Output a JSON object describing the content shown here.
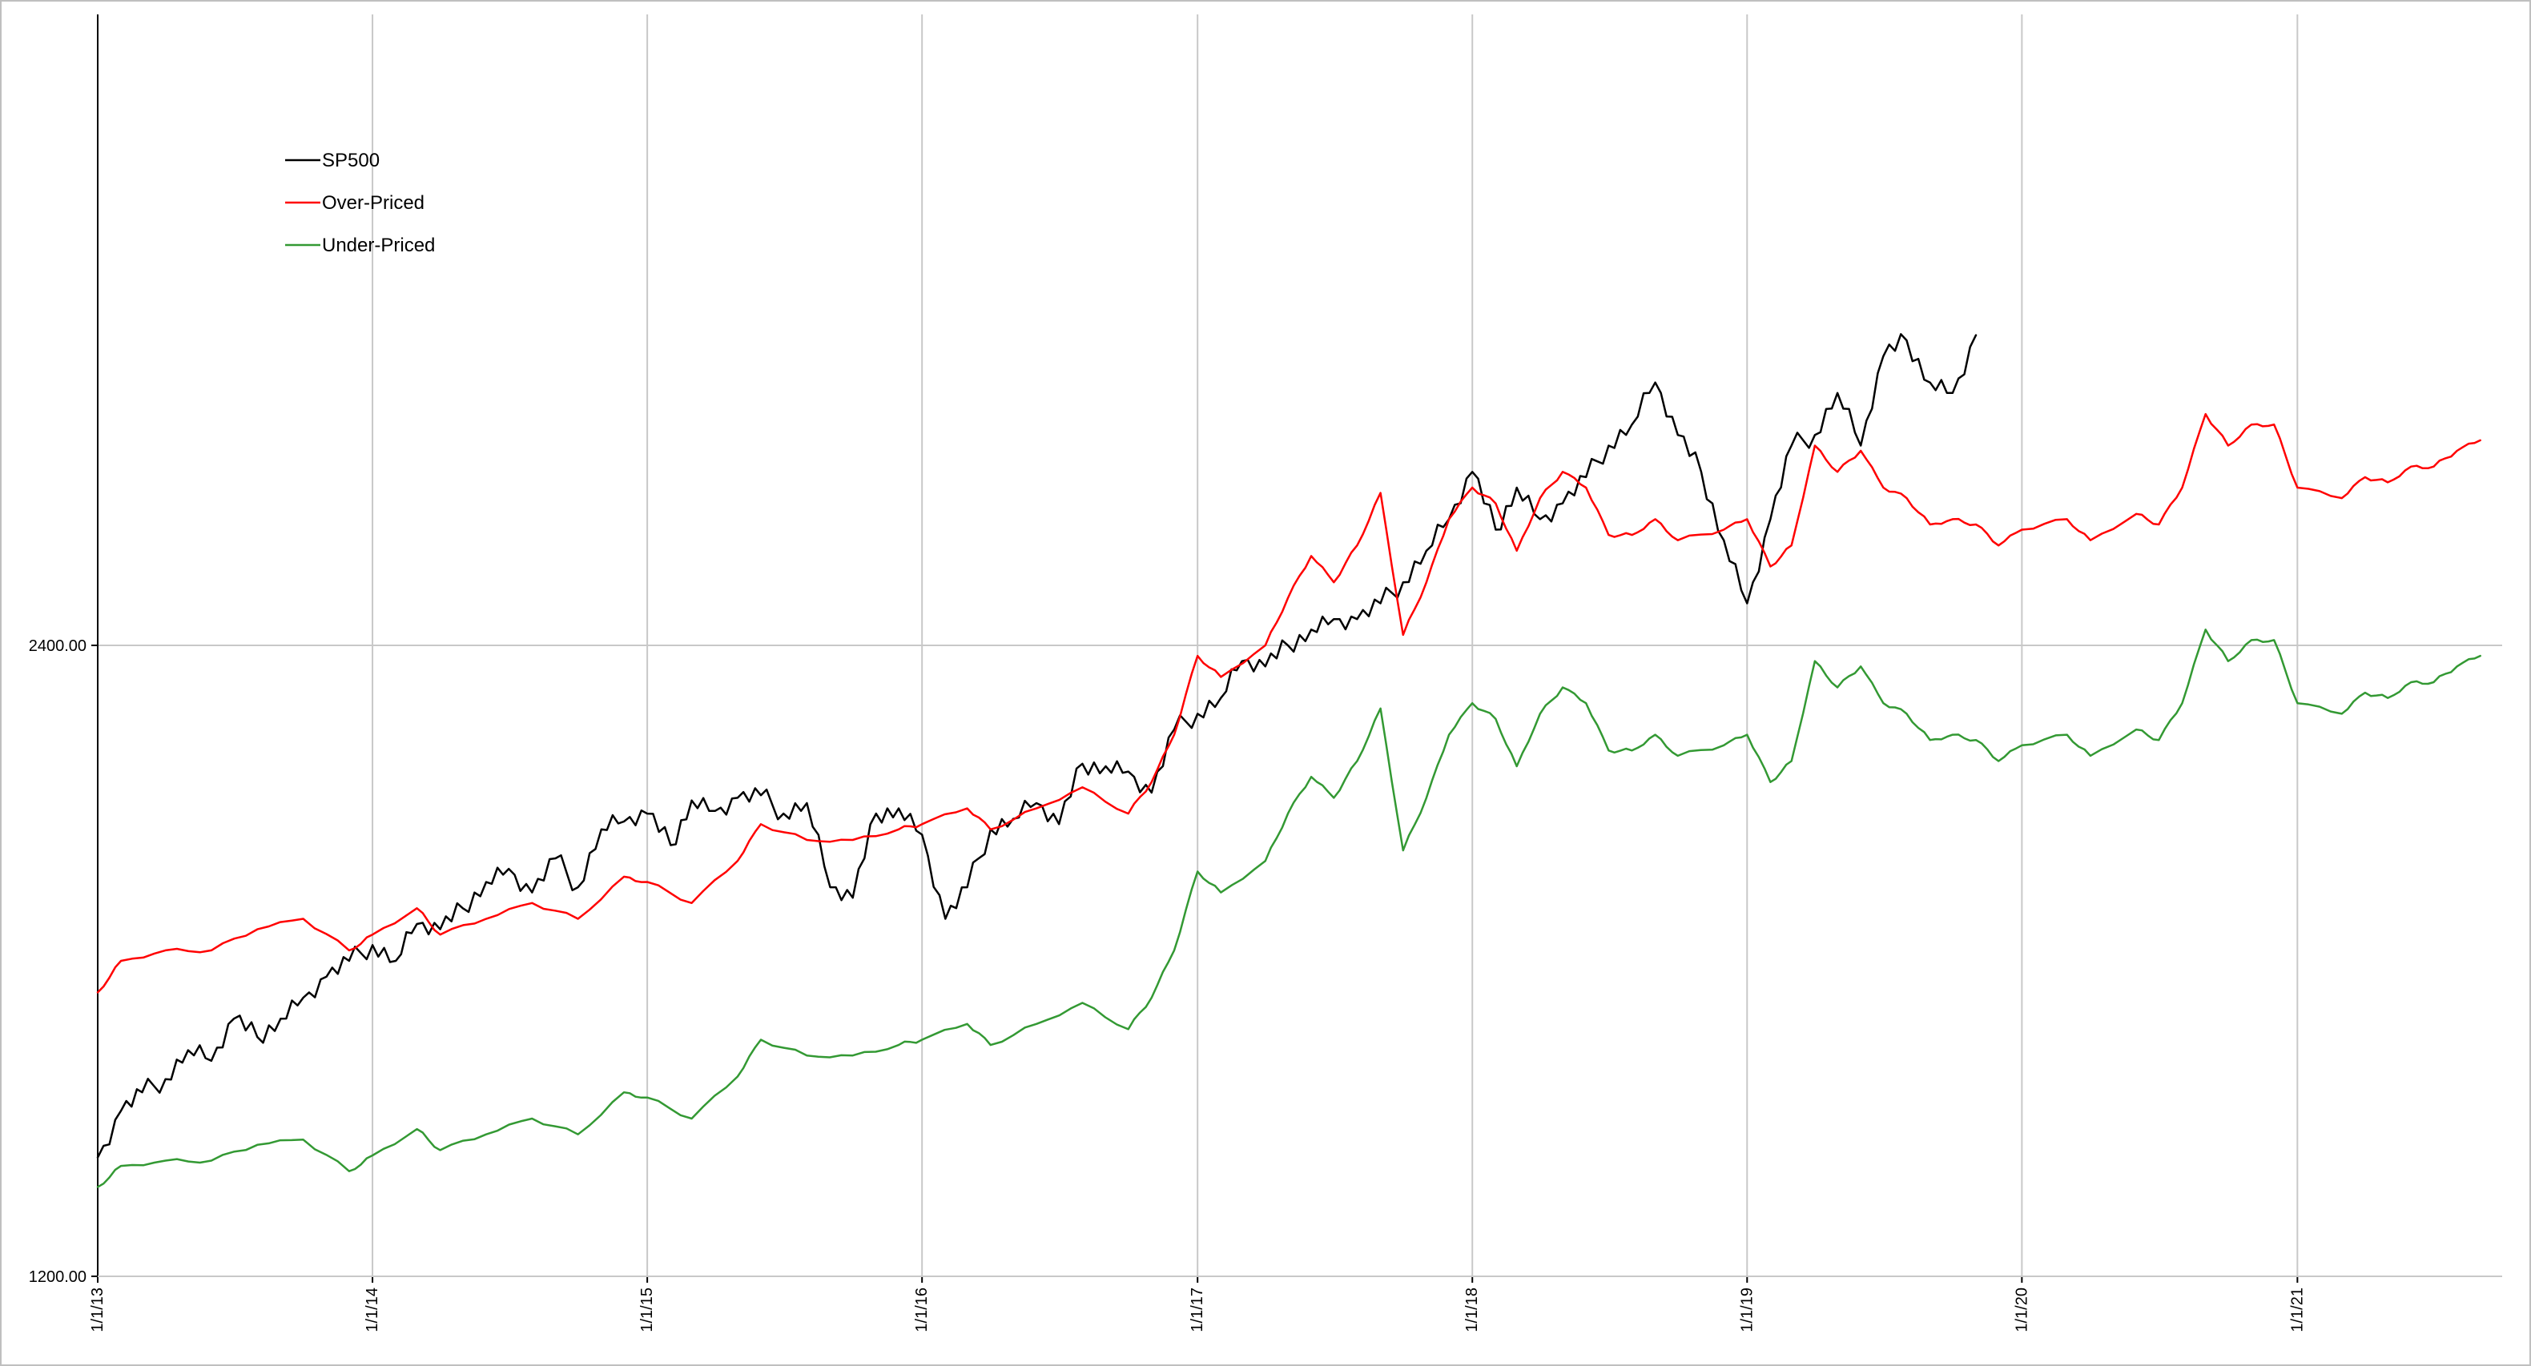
{
  "chart_data": {
    "type": "line",
    "title": "",
    "xlabel": "",
    "ylabel": "",
    "x_ticks": [
      "1/1/13",
      "1/1/14",
      "1/1/15",
      "1/1/16",
      "1/1/17",
      "1/1/18",
      "1/1/19",
      "1/1/20",
      "1/1/21"
    ],
    "y_ticks": [
      "1200.00",
      "2400.00"
    ],
    "xlim": [
      "2013-01-01",
      "2021-09-30"
    ],
    "ylim": [
      1200,
      3600
    ],
    "grid": true,
    "legend_position": "top-left",
    "series": [
      {
        "name": "SP500",
        "color": "#000000",
        "points": [
          [
            "2013-01-01",
            1426
          ],
          [
            "2013-02-01",
            1515
          ],
          [
            "2013-03-01",
            1550
          ],
          [
            "2013-04-01",
            1575
          ],
          [
            "2013-05-01",
            1630
          ],
          [
            "2013-06-01",
            1610
          ],
          [
            "2013-07-01",
            1690
          ],
          [
            "2013-08-01",
            1655
          ],
          [
            "2013-09-01",
            1690
          ],
          [
            "2013-10-01",
            1730
          ],
          [
            "2013-11-01",
            1770
          ],
          [
            "2013-12-01",
            1800
          ],
          [
            "2014-01-01",
            1830
          ],
          [
            "2014-02-01",
            1800
          ],
          [
            "2014-03-01",
            1870
          ],
          [
            "2014-04-01",
            1860
          ],
          [
            "2014-05-01",
            1900
          ],
          [
            "2014-06-01",
            1950
          ],
          [
            "2014-07-01",
            1975
          ],
          [
            "2014-08-01",
            1930
          ],
          [
            "2014-09-01",
            1995
          ],
          [
            "2014-10-01",
            1940
          ],
          [
            "2014-11-01",
            2050
          ],
          [
            "2014-12-01",
            2065
          ],
          [
            "2015-01-01",
            2080
          ],
          [
            "2015-02-01",
            2020
          ],
          [
            "2015-03-01",
            2105
          ],
          [
            "2015-04-01",
            2085
          ],
          [
            "2015-05-01",
            2110
          ],
          [
            "2015-06-01",
            2115
          ],
          [
            "2015-07-01",
            2080
          ],
          [
            "2015-08-01",
            2100
          ],
          [
            "2015-09-01",
            1940
          ],
          [
            "2015-10-01",
            1920
          ],
          [
            "2015-11-01",
            2080
          ],
          [
            "2015-12-01",
            2090
          ],
          [
            "2016-01-01",
            2040
          ],
          [
            "2016-02-01",
            1880
          ],
          [
            "2016-03-01",
            1940
          ],
          [
            "2016-04-01",
            2050
          ],
          [
            "2016-05-01",
            2070
          ],
          [
            "2016-06-01",
            2100
          ],
          [
            "2016-07-01",
            2060
          ],
          [
            "2016-08-01",
            2175
          ],
          [
            "2016-09-01",
            2170
          ],
          [
            "2016-10-01",
            2160
          ],
          [
            "2016-11-01",
            2120
          ],
          [
            "2016-12-01",
            2240
          ],
          [
            "2017-01-01",
            2270
          ],
          [
            "2017-02-01",
            2300
          ],
          [
            "2017-03-01",
            2370
          ],
          [
            "2017-04-01",
            2360
          ],
          [
            "2017-05-01",
            2400
          ],
          [
            "2017-06-01",
            2430
          ],
          [
            "2017-07-01",
            2450
          ],
          [
            "2017-08-01",
            2450
          ],
          [
            "2017-09-01",
            2480
          ],
          [
            "2017-10-01",
            2520
          ],
          [
            "2017-11-01",
            2580
          ],
          [
            "2017-12-01",
            2640
          ],
          [
            "2018-01-01",
            2730
          ],
          [
            "2018-02-01",
            2620
          ],
          [
            "2018-03-01",
            2700
          ],
          [
            "2018-04-01",
            2640
          ],
          [
            "2018-05-01",
            2670
          ],
          [
            "2018-06-01",
            2720
          ],
          [
            "2018-07-01",
            2780
          ],
          [
            "2018-08-01",
            2820
          ],
          [
            "2018-09-01",
            2900
          ],
          [
            "2018-10-01",
            2800
          ],
          [
            "2018-11-01",
            2730
          ],
          [
            "2018-12-01",
            2600
          ],
          [
            "2019-01-01",
            2480
          ],
          [
            "2019-02-01",
            2640
          ],
          [
            "2019-03-01",
            2780
          ],
          [
            "2019-04-01",
            2800
          ],
          [
            "2019-05-01",
            2880
          ],
          [
            "2019-06-01",
            2780
          ],
          [
            "2019-07-01",
            2950
          ],
          [
            "2019-08-01",
            2980
          ],
          [
            "2019-09-01",
            2900
          ],
          [
            "2019-10-01",
            2880
          ],
          [
            "2019-11-01",
            2990
          ]
        ]
      },
      {
        "name": "Over-Priced",
        "color": "#ff0000",
        "points": [
          [
            "2013-01-01",
            1740
          ],
          [
            "2013-02-01",
            1800
          ],
          [
            "2013-04-01",
            1820
          ],
          [
            "2013-06-01",
            1820
          ],
          [
            "2013-08-01",
            1860
          ],
          [
            "2013-10-01",
            1880
          ],
          [
            "2013-12-01",
            1820
          ],
          [
            "2014-01-01",
            1850
          ],
          [
            "2014-03-01",
            1900
          ],
          [
            "2014-04-01",
            1850
          ],
          [
            "2014-06-01",
            1880
          ],
          [
            "2014-08-01",
            1910
          ],
          [
            "2014-10-01",
            1880
          ],
          [
            "2014-12-01",
            1960
          ],
          [
            "2015-01-01",
            1950
          ],
          [
            "2015-03-01",
            1910
          ],
          [
            "2015-05-01",
            1990
          ],
          [
            "2015-06-01",
            2060
          ],
          [
            "2015-08-01",
            2030
          ],
          [
            "2015-10-01",
            2030
          ],
          [
            "2015-12-01",
            2050
          ],
          [
            "2016-01-01",
            2060
          ],
          [
            "2016-03-01",
            2090
          ],
          [
            "2016-04-01",
            2050
          ],
          [
            "2016-06-01",
            2090
          ],
          [
            "2016-08-01",
            2130
          ],
          [
            "2016-10-01",
            2080
          ],
          [
            "2016-11-01",
            2140
          ],
          [
            "2016-12-01",
            2230
          ],
          [
            "2017-01-01",
            2380
          ],
          [
            "2017-02-01",
            2340
          ],
          [
            "2017-04-01",
            2400
          ],
          [
            "2017-05-01",
            2490
          ],
          [
            "2017-06-01",
            2570
          ],
          [
            "2017-07-01",
            2520
          ],
          [
            "2017-08-01",
            2590
          ],
          [
            "2017-09-01",
            2690
          ],
          [
            "2017-10-01",
            2420
          ],
          [
            "2017-11-01",
            2520
          ],
          [
            "2017-12-01",
            2640
          ],
          [
            "2018-01-01",
            2700
          ],
          [
            "2018-02-01",
            2670
          ],
          [
            "2018-03-01",
            2580
          ],
          [
            "2018-04-01",
            2680
          ],
          [
            "2018-05-01",
            2730
          ],
          [
            "2018-06-01",
            2700
          ],
          [
            "2018-07-01",
            2610
          ],
          [
            "2018-08-01",
            2610
          ],
          [
            "2018-09-01",
            2640
          ],
          [
            "2018-10-01",
            2600
          ],
          [
            "2018-12-01",
            2620
          ],
          [
            "2019-01-01",
            2640
          ],
          [
            "2019-02-01",
            2550
          ],
          [
            "2019-03-01",
            2590
          ],
          [
            "2019-04-01",
            2780
          ],
          [
            "2019-05-01",
            2730
          ],
          [
            "2019-06-01",
            2770
          ],
          [
            "2019-07-01",
            2700
          ],
          [
            "2019-08-01",
            2680
          ],
          [
            "2019-09-01",
            2630
          ],
          [
            "2019-10-01",
            2640
          ],
          [
            "2019-11-01",
            2630
          ],
          [
            "2019-12-01",
            2590
          ],
          [
            "2020-01-01",
            2620
          ],
          [
            "2020-03-01",
            2640
          ],
          [
            "2020-04-01",
            2600
          ],
          [
            "2020-06-01",
            2650
          ],
          [
            "2020-07-01",
            2630
          ],
          [
            "2020-08-01",
            2700
          ],
          [
            "2020-09-01",
            2840
          ],
          [
            "2020-10-01",
            2780
          ],
          [
            "2020-11-01",
            2820
          ],
          [
            "2020-12-01",
            2820
          ],
          [
            "2021-01-01",
            2700
          ],
          [
            "2021-03-01",
            2680
          ],
          [
            "2021-04-01",
            2720
          ],
          [
            "2021-05-01",
            2710
          ],
          [
            "2021-06-01",
            2740
          ],
          [
            "2021-07-01",
            2740
          ],
          [
            "2021-08-01",
            2770
          ],
          [
            "2021-09-01",
            2790
          ]
        ]
      },
      {
        "name": "Under-Priced",
        "color": "#339933",
        "points": [
          [
            "2013-01-01",
            1370
          ],
          [
            "2013-02-01",
            1410
          ],
          [
            "2013-04-01",
            1420
          ],
          [
            "2013-06-01",
            1420
          ],
          [
            "2013-08-01",
            1450
          ],
          [
            "2013-10-01",
            1460
          ],
          [
            "2013-12-01",
            1400
          ],
          [
            "2014-01-01",
            1430
          ],
          [
            "2014-03-01",
            1480
          ],
          [
            "2014-04-01",
            1440
          ],
          [
            "2014-06-01",
            1470
          ],
          [
            "2014-08-01",
            1500
          ],
          [
            "2014-10-01",
            1470
          ],
          [
            "2014-12-01",
            1550
          ],
          [
            "2015-01-01",
            1540
          ],
          [
            "2015-03-01",
            1500
          ],
          [
            "2015-05-01",
            1580
          ],
          [
            "2015-06-01",
            1650
          ],
          [
            "2015-08-01",
            1620
          ],
          [
            "2015-10-01",
            1620
          ],
          [
            "2015-12-01",
            1640
          ],
          [
            "2016-01-01",
            1650
          ],
          [
            "2016-03-01",
            1680
          ],
          [
            "2016-04-01",
            1640
          ],
          [
            "2016-06-01",
            1680
          ],
          [
            "2016-08-01",
            1720
          ],
          [
            "2016-10-01",
            1670
          ],
          [
            "2016-11-01",
            1730
          ],
          [
            "2016-12-01",
            1820
          ],
          [
            "2017-01-01",
            1970
          ],
          [
            "2017-02-01",
            1930
          ],
          [
            "2017-04-01",
            1990
          ],
          [
            "2017-05-01",
            2080
          ],
          [
            "2017-06-01",
            2150
          ],
          [
            "2017-07-01",
            2110
          ],
          [
            "2017-08-01",
            2180
          ],
          [
            "2017-09-01",
            2280
          ],
          [
            "2017-10-01",
            2010
          ],
          [
            "2017-11-01",
            2110
          ],
          [
            "2017-12-01",
            2230
          ],
          [
            "2018-01-01",
            2290
          ],
          [
            "2018-02-01",
            2260
          ],
          [
            "2018-03-01",
            2170
          ],
          [
            "2018-04-01",
            2270
          ],
          [
            "2018-05-01",
            2320
          ],
          [
            "2018-06-01",
            2290
          ],
          [
            "2018-07-01",
            2200
          ],
          [
            "2018-08-01",
            2200
          ],
          [
            "2018-09-01",
            2230
          ],
          [
            "2018-10-01",
            2190
          ],
          [
            "2018-12-01",
            2210
          ],
          [
            "2019-01-01",
            2230
          ],
          [
            "2019-02-01",
            2140
          ],
          [
            "2019-03-01",
            2180
          ],
          [
            "2019-04-01",
            2370
          ],
          [
            "2019-05-01",
            2320
          ],
          [
            "2019-06-01",
            2360
          ],
          [
            "2019-07-01",
            2290
          ],
          [
            "2019-08-01",
            2270
          ],
          [
            "2019-09-01",
            2220
          ],
          [
            "2019-10-01",
            2230
          ],
          [
            "2019-11-01",
            2220
          ],
          [
            "2019-12-01",
            2180
          ],
          [
            "2020-01-01",
            2210
          ],
          [
            "2020-03-01",
            2230
          ],
          [
            "2020-04-01",
            2190
          ],
          [
            "2020-06-01",
            2240
          ],
          [
            "2020-07-01",
            2220
          ],
          [
            "2020-08-01",
            2290
          ],
          [
            "2020-09-01",
            2430
          ],
          [
            "2020-10-01",
            2370
          ],
          [
            "2020-11-01",
            2410
          ],
          [
            "2020-12-01",
            2410
          ],
          [
            "2021-01-01",
            2290
          ],
          [
            "2021-03-01",
            2270
          ],
          [
            "2021-04-01",
            2310
          ],
          [
            "2021-05-01",
            2300
          ],
          [
            "2021-06-01",
            2330
          ],
          [
            "2021-07-01",
            2330
          ],
          [
            "2021-08-01",
            2360
          ],
          [
            "2021-09-01",
            2380
          ]
        ]
      }
    ]
  }
}
